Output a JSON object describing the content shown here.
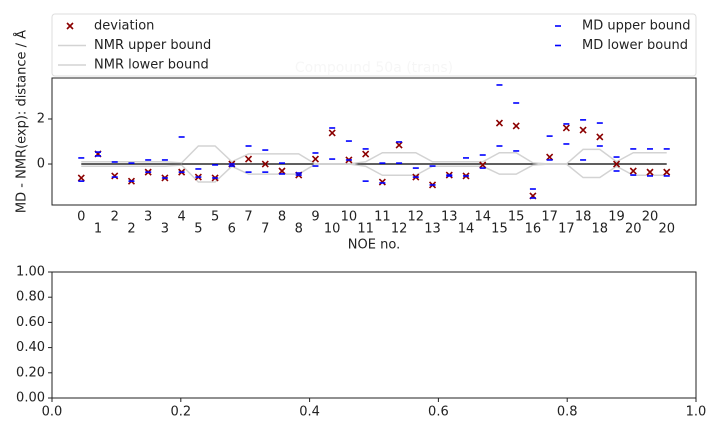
{
  "chart_data": [
    {
      "type": "scatter",
      "title": "Compound 50a (trans)",
      "x_label": "NOE no.",
      "y_label": "MD - NMR(exp): distance / Å",
      "categories": [
        "0",
        "1",
        "2",
        "2",
        "3",
        "3",
        "4",
        "5",
        "5",
        "6",
        "7",
        "7",
        "8",
        "8",
        "9",
        "10",
        "10",
        "11",
        "11",
        "12",
        "12",
        "13",
        "13",
        "14",
        "14",
        "15",
        "15",
        "16",
        "17",
        "17",
        "18",
        "18",
        "19",
        "20",
        "20",
        "20"
      ],
      "xlim": [
        -1.75,
        36.75
      ],
      "ylim": [
        -1.82,
        3.82
      ],
      "yticks": [
        0,
        2
      ],
      "series": [
        {
          "name": "deviation",
          "color": "#8b0000",
          "marker": "x",
          "values": [
            -0.62,
            0.45,
            -0.53,
            -0.76,
            -0.36,
            -0.62,
            -0.36,
            -0.58,
            -0.62,
            0.0,
            0.22,
            0.0,
            -0.31,
            -0.49,
            0.22,
            1.38,
            0.18,
            0.44,
            -0.8,
            0.84,
            -0.58,
            -0.93,
            -0.49,
            -0.53,
            -0.04,
            1.82,
            1.69,
            -1.42,
            0.31,
            1.6,
            1.51,
            1.2,
            0.0,
            -0.31,
            -0.36,
            -0.36
          ]
        },
        {
          "name": "NMR upper bound",
          "color": "#d3d3d3",
          "marker": "line",
          "values": [
            0.1,
            0.1,
            0.1,
            0.1,
            0.1,
            0.1,
            0.05,
            0.8,
            0.8,
            0.1,
            0.45,
            0.45,
            0.45,
            0.45,
            0,
            0,
            0,
            0.1,
            0.5,
            0.5,
            0.5,
            0.1,
            0.1,
            0.1,
            0.1,
            0.5,
            0.5,
            0.05,
            0,
            0,
            0.65,
            0.65,
            0.1,
            0.5,
            0.5,
            0.5
          ]
        },
        {
          "name": "NMR lower bound",
          "color": "#d3d3d3",
          "marker": "line",
          "values": [
            -0.1,
            -0.1,
            -0.1,
            -0.1,
            -0.1,
            -0.1,
            -0.05,
            -0.8,
            -0.8,
            -0.1,
            -0.45,
            -0.45,
            -0.45,
            -0.45,
            0,
            0,
            0,
            -0.1,
            -0.5,
            -0.5,
            -0.5,
            -0.1,
            -0.1,
            -0.1,
            -0.1,
            -0.45,
            -0.45,
            -0.05,
            0,
            0,
            -0.6,
            -0.6,
            -0.1,
            -0.5,
            -0.5,
            -0.5
          ]
        },
        {
          "name": "MD upper bound",
          "color": "#0000ff",
          "marker": "dash",
          "values": [
            0.27,
            0.53,
            0.09,
            0.04,
            0.18,
            0.18,
            1.2,
            -0.22,
            -0.04,
            0.0,
            0.8,
            0.62,
            0.04,
            -0.4,
            0.49,
            1.6,
            1.02,
            0.67,
            0.04,
            0.98,
            -0.18,
            -0.09,
            -0.49,
            0.27,
            0.4,
            3.51,
            2.71,
            -1.11,
            1.24,
            1.78,
            1.96,
            1.82,
            0.31,
            0.67,
            0.67,
            0.67
          ]
        },
        {
          "name": "MD lower bound",
          "color": "#0000ff",
          "marker": "dash",
          "values": [
            -0.76,
            0.36,
            -0.58,
            -0.76,
            -0.36,
            -0.62,
            -0.36,
            -0.58,
            -0.62,
            -0.09,
            -0.36,
            -0.36,
            -0.44,
            -0.49,
            -0.09,
            0.22,
            0.18,
            -0.76,
            -0.84,
            0.04,
            -0.58,
            -0.93,
            -0.53,
            -0.53,
            -0.18,
            0.8,
            0.58,
            -1.51,
            0.18,
            0.89,
            0.18,
            0.8,
            -0.31,
            -0.49,
            -0.53,
            -0.53
          ]
        }
      ],
      "legend": "upper center",
      "legend_columns": 2
    },
    {
      "type": "empty",
      "xlim": [
        0,
        1
      ],
      "ylim": [
        0,
        1
      ],
      "xticks": [
        {
          "value": 0,
          "label": "0.0"
        },
        {
          "value": 0.2,
          "label": "0.2"
        },
        {
          "value": 0.4,
          "label": "0.4"
        },
        {
          "value": 0.6,
          "label": "0.6"
        },
        {
          "value": 0.8,
          "label": "0.8"
        },
        {
          "value": 1,
          "label": "1.0"
        }
      ],
      "yticks": [
        {
          "value": 0,
          "label": "0.00"
        },
        {
          "value": 0.2,
          "label": "0.20"
        },
        {
          "value": 0.4,
          "label": "0.40"
        },
        {
          "value": 0.6,
          "label": "0.60"
        },
        {
          "value": 0.8,
          "label": "0.80"
        },
        {
          "value": 1,
          "label": "1.00"
        }
      ]
    }
  ]
}
